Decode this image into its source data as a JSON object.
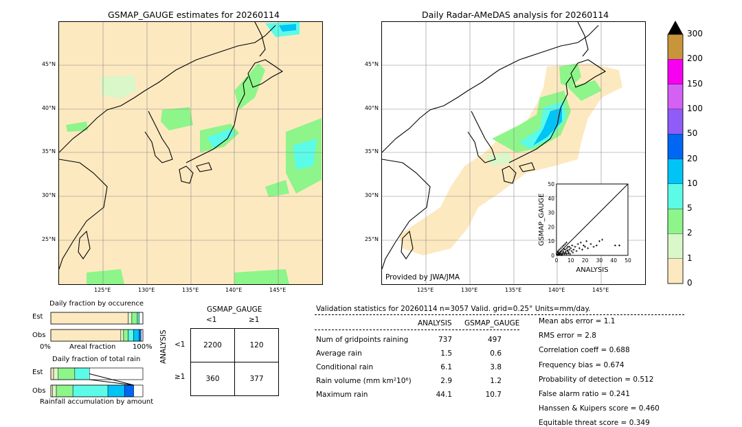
{
  "left_map": {
    "title": "GSMAP_GAUGE estimates for 20260114",
    "lat_labels": [
      "45°N",
      "40°N",
      "35°N",
      "30°N",
      "25°N"
    ],
    "lon_labels": [
      "125°E",
      "130°E",
      "135°E",
      "140°E",
      "145°E"
    ]
  },
  "right_map": {
    "title": "Daily Radar-AMeDAS analysis for 20260114",
    "lat_labels": [
      "45°N",
      "40°N",
      "35°N",
      "30°N",
      "25°N"
    ],
    "lon_labels": [
      "125°E",
      "130°E",
      "135°E",
      "140°E",
      "145°E"
    ],
    "credit": "Provided by JWA/JMA"
  },
  "colorbar": {
    "ticks": [
      "0",
      "1",
      "2",
      "5",
      "10",
      "20",
      "50",
      "100",
      "150",
      "200",
      "300"
    ],
    "colors": [
      "#fde9c0",
      "#d9f7c8",
      "#8ef58a",
      "#5cfbe8",
      "#00c4f6",
      "#0066f4",
      "#8f5cf7",
      "#d460f4",
      "#f700f1",
      "#c9953a"
    ],
    "extend_color": "#000000"
  },
  "chart_data": [
    {
      "type": "scatter",
      "title": "",
      "xlabel": "ANALYSIS",
      "ylabel": "GSMAP_GAUGE",
      "xlim": [
        0,
        50
      ],
      "ylim": [
        0,
        50
      ],
      "x_ticks": [
        "0",
        "10",
        "20",
        "30",
        "40",
        "50"
      ],
      "y_ticks": [
        "0",
        "10",
        "20",
        "30",
        "40",
        "50"
      ],
      "diagonal": true,
      "points": [
        [
          0.5,
          0.5
        ],
        [
          1,
          0.3
        ],
        [
          1.5,
          1
        ],
        [
          2,
          0.5
        ],
        [
          2.5,
          2
        ],
        [
          3,
          1
        ],
        [
          3.5,
          0.2
        ],
        [
          4,
          1.5
        ],
        [
          4.5,
          3
        ],
        [
          5,
          2
        ],
        [
          5.5,
          1
        ],
        [
          6,
          4
        ],
        [
          6.5,
          2.5
        ],
        [
          7,
          1
        ],
        [
          7.5,
          3.5
        ],
        [
          8,
          6
        ],
        [
          8.5,
          2
        ],
        [
          9,
          4
        ],
        [
          9.5,
          1
        ],
        [
          10,
          5
        ],
        [
          10.5,
          3
        ],
        [
          11,
          7
        ],
        [
          11.5,
          2
        ],
        [
          12,
          4
        ],
        [
          13,
          6
        ],
        [
          14,
          3
        ],
        [
          15,
          8
        ],
        [
          16,
          5
        ],
        [
          17,
          9
        ],
        [
          18,
          4
        ],
        [
          19,
          7
        ],
        [
          20,
          6
        ],
        [
          21,
          10
        ],
        [
          22,
          5
        ],
        [
          24,
          8
        ],
        [
          26,
          6
        ],
        [
          28,
          7
        ],
        [
          30,
          10
        ],
        [
          32,
          11
        ],
        [
          41,
          7
        ],
        [
          44,
          7
        ],
        [
          1,
          2
        ],
        [
          2,
          4
        ],
        [
          3,
          5
        ],
        [
          4,
          6
        ],
        [
          5,
          7
        ],
        [
          6,
          8
        ],
        [
          7,
          9
        ],
        [
          8,
          3
        ],
        [
          9,
          6
        ],
        [
          0.3,
          1
        ],
        [
          0.8,
          2.5
        ],
        [
          1.2,
          3
        ],
        [
          2.2,
          1.2
        ],
        [
          3.2,
          2.8
        ],
        [
          4.2,
          0.8
        ],
        [
          5.2,
          4.5
        ],
        [
          6.2,
          1.5
        ],
        [
          7.2,
          5
        ],
        [
          8.2,
          1.2
        ]
      ]
    },
    {
      "type": "bar",
      "title": "Daily fraction by occurence",
      "categories": [
        "Est",
        "Obs"
      ],
      "xlabel": "Areal fraction",
      "x_ticks": [
        "0%",
        "100%"
      ],
      "stacked": true,
      "series": [
        {
          "color": "#fde9c0",
          "values": [
            0.84,
            0.76
          ]
        },
        {
          "color": "#d9f7c8",
          "values": [
            0.04,
            0.03
          ]
        },
        {
          "color": "#8ef58a",
          "values": [
            0.06,
            0.05
          ]
        },
        {
          "color": "#5cfbe8",
          "values": [
            0.02,
            0.06
          ]
        },
        {
          "color": "#00c4f6",
          "values": [
            0.0,
            0.06
          ]
        },
        {
          "color": "#0066f4",
          "values": [
            0.0,
            0.02
          ]
        },
        {
          "color": "#ffffff",
          "values": [
            0.04,
            0.02
          ]
        }
      ]
    },
    {
      "type": "bar",
      "title": "Daily fraction of total rain",
      "categories": [
        "Est",
        "Obs"
      ],
      "xlabel": "Rainfall accumulation by amount",
      "stacked": true,
      "series": [
        {
          "color": "#fde9c0",
          "values": [
            0.03,
            0.02
          ]
        },
        {
          "color": "#d9f7c8",
          "values": [
            0.05,
            0.04
          ]
        },
        {
          "color": "#8ef58a",
          "values": [
            0.18,
            0.18
          ]
        },
        {
          "color": "#5cfbe8",
          "values": [
            0.16,
            0.38
          ]
        },
        {
          "color": "#00c4f6",
          "values": [
            0.0,
            0.18
          ]
        },
        {
          "color": "#0066f4",
          "values": [
            0.0,
            0.1
          ]
        }
      ]
    }
  ],
  "contingency": {
    "title": "GSMAP_GAUGE",
    "col_labels": [
      "<1",
      "≥1"
    ],
    "row_labels": [
      "<1",
      "≥1"
    ],
    "row_axis_label": "ANALYSIS",
    "cells": [
      [
        "2200",
        "120"
      ],
      [
        "360",
        "377"
      ]
    ]
  },
  "validation": {
    "header": "Validation statistics for 20260114  n=3057 Valid. grid=0.25° Units=mm/day.",
    "col_analysis": "ANALYSIS",
    "col_gsmap": "GSMAP_GAUGE",
    "rows": [
      {
        "label": "Num of gridpoints raining",
        "analysis": "737",
        "gsmap": "497"
      },
      {
        "label": "Average rain",
        "analysis": "1.5",
        "gsmap": "0.6"
      },
      {
        "label": "Conditional rain",
        "analysis": "6.1",
        "gsmap": "3.8"
      },
      {
        "label": "Rain volume (mm km²10⁶)",
        "analysis": "2.9",
        "gsmap": "1.2"
      },
      {
        "label": "Maximum rain",
        "analysis": "44.1",
        "gsmap": "10.7"
      }
    ],
    "scores": [
      "Mean abs error =    1.1",
      "RMS error =    2.8",
      "Correlation coeff =  0.688",
      "Frequency bias =  0.674",
      "Probability of detection =  0.512",
      "False alarm ratio =  0.241",
      "Hanssen & Kuipers score =  0.460",
      "Equitable threat score =  0.349"
    ]
  }
}
